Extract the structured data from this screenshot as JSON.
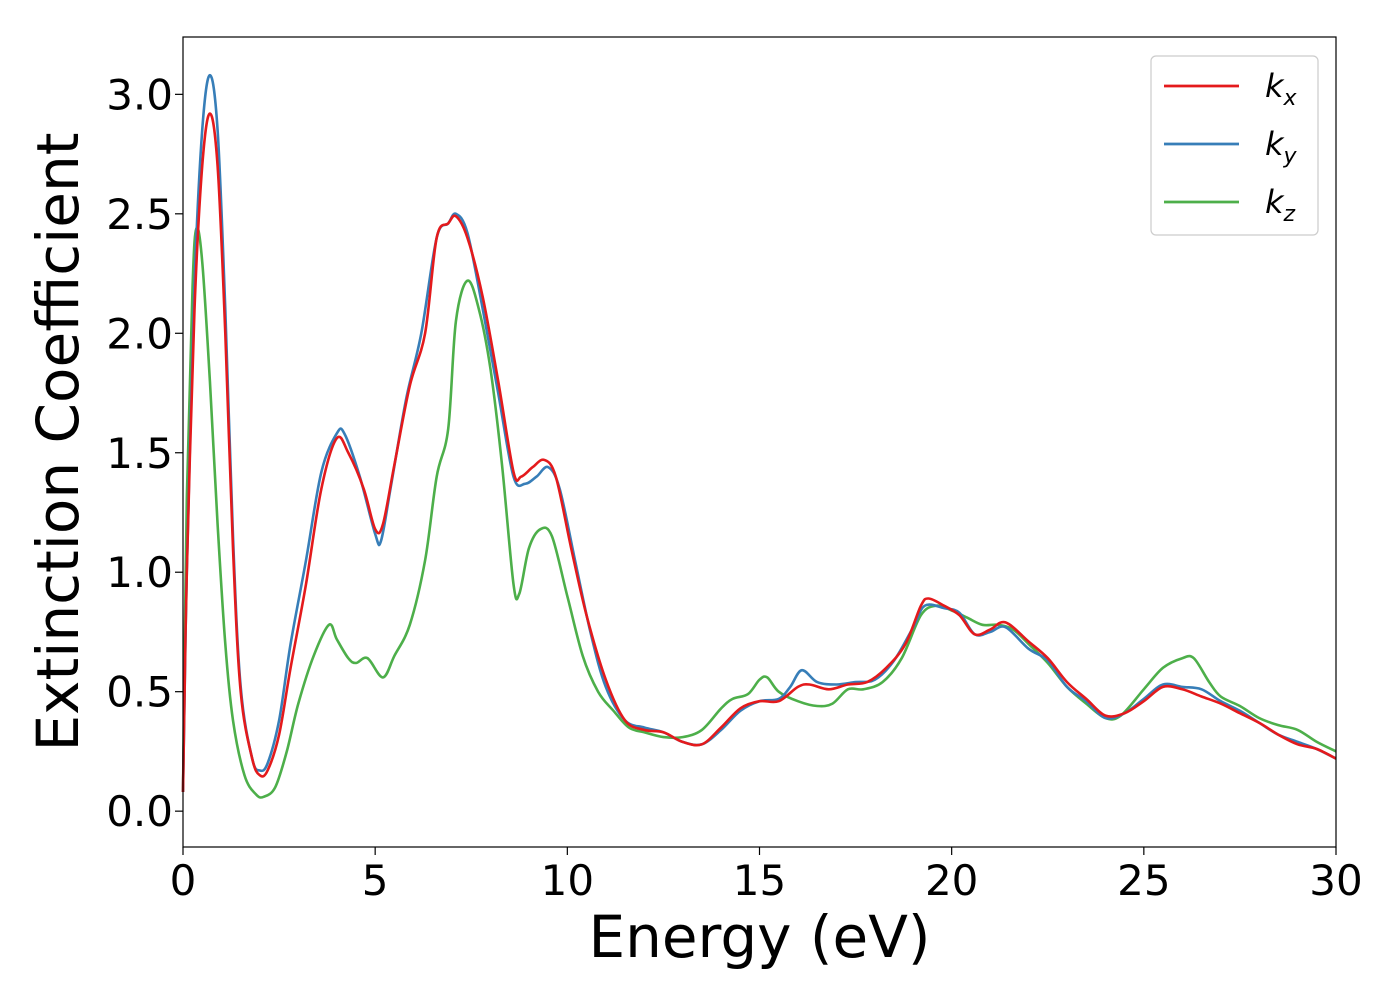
{
  "chart_data": {
    "type": "line",
    "xlabel": "Energy (eV)",
    "ylabel": "Extinction Coefficient",
    "xlim": [
      0,
      30
    ],
    "ylim": [
      -0.15,
      3.24
    ],
    "xticks": [
      0,
      5,
      10,
      15,
      20,
      25,
      30
    ],
    "xtick_labels": [
      "0",
      "5",
      "10",
      "15",
      "20",
      "25",
      "30"
    ],
    "yticks": [
      0.0,
      0.5,
      1.0,
      1.5,
      2.0,
      2.5,
      3.0
    ],
    "ytick_labels": [
      "0.0",
      "0.5",
      "1.0",
      "1.5",
      "2.0",
      "2.5",
      "3.0"
    ],
    "grid": false,
    "legend_position": "top-right",
    "series": [
      {
        "name": "k",
        "subscript": "x",
        "color": "#e41a1c",
        "points": [
          [
            0,
            0.08
          ],
          [
            0.1,
            1.0
          ],
          [
            0.3,
            2.1
          ],
          [
            0.5,
            2.7
          ],
          [
            0.7,
            2.92
          ],
          [
            0.9,
            2.7
          ],
          [
            1.1,
            2.0
          ],
          [
            1.3,
            1.1
          ],
          [
            1.5,
            0.5
          ],
          [
            1.8,
            0.22
          ],
          [
            2.0,
            0.15
          ],
          [
            2.2,
            0.17
          ],
          [
            2.5,
            0.32
          ],
          [
            2.8,
            0.6
          ],
          [
            3.2,
            0.95
          ],
          [
            3.6,
            1.35
          ],
          [
            4.0,
            1.56
          ],
          [
            4.3,
            1.5
          ],
          [
            4.7,
            1.35
          ],
          [
            5.0,
            1.18
          ],
          [
            5.2,
            1.2
          ],
          [
            5.5,
            1.45
          ],
          [
            5.9,
            1.78
          ],
          [
            6.3,
            2.0
          ],
          [
            6.6,
            2.4
          ],
          [
            6.9,
            2.46
          ],
          [
            7.1,
            2.49
          ],
          [
            7.4,
            2.4
          ],
          [
            7.8,
            2.15
          ],
          [
            8.2,
            1.8
          ],
          [
            8.6,
            1.42
          ],
          [
            8.8,
            1.4
          ],
          [
            9.1,
            1.44
          ],
          [
            9.4,
            1.47
          ],
          [
            9.7,
            1.4
          ],
          [
            10.1,
            1.1
          ],
          [
            10.5,
            0.82
          ],
          [
            11.0,
            0.55
          ],
          [
            11.5,
            0.38
          ],
          [
            12.0,
            0.34
          ],
          [
            12.5,
            0.33
          ],
          [
            13.0,
            0.29
          ],
          [
            13.5,
            0.28
          ],
          [
            14.0,
            0.35
          ],
          [
            14.5,
            0.43
          ],
          [
            15.0,
            0.46
          ],
          [
            15.5,
            0.46
          ],
          [
            16.0,
            0.52
          ],
          [
            16.3,
            0.53
          ],
          [
            16.8,
            0.51
          ],
          [
            17.3,
            0.53
          ],
          [
            17.8,
            0.54
          ],
          [
            18.3,
            0.6
          ],
          [
            18.8,
            0.7
          ],
          [
            19.2,
            0.86
          ],
          [
            19.4,
            0.89
          ],
          [
            19.8,
            0.86
          ],
          [
            20.2,
            0.82
          ],
          [
            20.6,
            0.74
          ],
          [
            21.0,
            0.76
          ],
          [
            21.4,
            0.79
          ],
          [
            22.0,
            0.71
          ],
          [
            22.5,
            0.64
          ],
          [
            23.0,
            0.54
          ],
          [
            23.5,
            0.47
          ],
          [
            24.0,
            0.4
          ],
          [
            24.5,
            0.41
          ],
          [
            25.0,
            0.46
          ],
          [
            25.5,
            0.52
          ],
          [
            26.0,
            0.51
          ],
          [
            26.5,
            0.48
          ],
          [
            27.0,
            0.45
          ],
          [
            27.5,
            0.41
          ],
          [
            28.0,
            0.37
          ],
          [
            28.5,
            0.32
          ],
          [
            29.0,
            0.28
          ],
          [
            29.5,
            0.26
          ],
          [
            30.0,
            0.22
          ]
        ]
      },
      {
        "name": "k",
        "subscript": "y",
        "color": "#377eb8",
        "points": [
          [
            0,
            0.08
          ],
          [
            0.1,
            1.0
          ],
          [
            0.3,
            2.2
          ],
          [
            0.5,
            2.85
          ],
          [
            0.7,
            3.08
          ],
          [
            0.9,
            2.85
          ],
          [
            1.1,
            2.1
          ],
          [
            1.3,
            1.15
          ],
          [
            1.5,
            0.52
          ],
          [
            1.8,
            0.22
          ],
          [
            2.0,
            0.17
          ],
          [
            2.2,
            0.2
          ],
          [
            2.5,
            0.38
          ],
          [
            2.8,
            0.7
          ],
          [
            3.2,
            1.05
          ],
          [
            3.6,
            1.42
          ],
          [
            4.0,
            1.58
          ],
          [
            4.2,
            1.58
          ],
          [
            4.6,
            1.4
          ],
          [
            5.0,
            1.16
          ],
          [
            5.15,
            1.13
          ],
          [
            5.4,
            1.35
          ],
          [
            5.8,
            1.72
          ],
          [
            6.2,
            2.0
          ],
          [
            6.6,
            2.4
          ],
          [
            6.9,
            2.46
          ],
          [
            7.1,
            2.5
          ],
          [
            7.4,
            2.42
          ],
          [
            7.8,
            2.1
          ],
          [
            8.2,
            1.75
          ],
          [
            8.6,
            1.4
          ],
          [
            8.9,
            1.37
          ],
          [
            9.2,
            1.4
          ],
          [
            9.5,
            1.44
          ],
          [
            9.8,
            1.35
          ],
          [
            10.2,
            1.05
          ],
          [
            10.6,
            0.75
          ],
          [
            11.0,
            0.52
          ],
          [
            11.5,
            0.38
          ],
          [
            12.0,
            0.35
          ],
          [
            12.5,
            0.33
          ],
          [
            13.0,
            0.29
          ],
          [
            13.5,
            0.28
          ],
          [
            14.0,
            0.34
          ],
          [
            14.5,
            0.42
          ],
          [
            15.0,
            0.46
          ],
          [
            15.5,
            0.47
          ],
          [
            15.8,
            0.52
          ],
          [
            16.1,
            0.59
          ],
          [
            16.5,
            0.54
          ],
          [
            17.0,
            0.53
          ],
          [
            17.5,
            0.54
          ],
          [
            18.0,
            0.55
          ],
          [
            18.5,
            0.63
          ],
          [
            19.0,
            0.77
          ],
          [
            19.3,
            0.86
          ],
          [
            19.8,
            0.85
          ],
          [
            20.2,
            0.83
          ],
          [
            20.6,
            0.74
          ],
          [
            21.0,
            0.75
          ],
          [
            21.4,
            0.77
          ],
          [
            22.0,
            0.68
          ],
          [
            22.5,
            0.63
          ],
          [
            23.0,
            0.52
          ],
          [
            23.5,
            0.46
          ],
          [
            24.0,
            0.39
          ],
          [
            24.5,
            0.41
          ],
          [
            25.0,
            0.47
          ],
          [
            25.5,
            0.53
          ],
          [
            26.0,
            0.52
          ],
          [
            26.5,
            0.51
          ],
          [
            27.0,
            0.46
          ],
          [
            27.5,
            0.42
          ],
          [
            28.0,
            0.37
          ],
          [
            28.5,
            0.32
          ],
          [
            29.0,
            0.29
          ],
          [
            29.5,
            0.26
          ],
          [
            30.0,
            0.22
          ]
        ]
      },
      {
        "name": "k",
        "subscript": "z",
        "color": "#4daf4a",
        "points": [
          [
            0,
            0.08
          ],
          [
            0.1,
            1.3
          ],
          [
            0.25,
            2.2
          ],
          [
            0.35,
            2.44
          ],
          [
            0.5,
            2.3
          ],
          [
            0.7,
            1.8
          ],
          [
            0.9,
            1.2
          ],
          [
            1.1,
            0.7
          ],
          [
            1.3,
            0.38
          ],
          [
            1.6,
            0.15
          ],
          [
            1.9,
            0.07
          ],
          [
            2.1,
            0.06
          ],
          [
            2.4,
            0.1
          ],
          [
            2.7,
            0.25
          ],
          [
            3.0,
            0.45
          ],
          [
            3.4,
            0.65
          ],
          [
            3.8,
            0.78
          ],
          [
            4.0,
            0.72
          ],
          [
            4.3,
            0.64
          ],
          [
            4.5,
            0.62
          ],
          [
            4.8,
            0.64
          ],
          [
            5.2,
            0.56
          ],
          [
            5.5,
            0.65
          ],
          [
            5.9,
            0.78
          ],
          [
            6.3,
            1.05
          ],
          [
            6.6,
            1.4
          ],
          [
            6.9,
            1.6
          ],
          [
            7.1,
            2.05
          ],
          [
            7.4,
            2.22
          ],
          [
            7.7,
            2.1
          ],
          [
            8.0,
            1.85
          ],
          [
            8.3,
            1.45
          ],
          [
            8.6,
            0.95
          ],
          [
            8.75,
            0.91
          ],
          [
            9.0,
            1.1
          ],
          [
            9.3,
            1.18
          ],
          [
            9.6,
            1.15
          ],
          [
            10.0,
            0.9
          ],
          [
            10.4,
            0.65
          ],
          [
            10.8,
            0.5
          ],
          [
            11.2,
            0.42
          ],
          [
            11.6,
            0.35
          ],
          [
            12.0,
            0.33
          ],
          [
            12.5,
            0.31
          ],
          [
            13.0,
            0.31
          ],
          [
            13.5,
            0.34
          ],
          [
            14.0,
            0.43
          ],
          [
            14.3,
            0.47
          ],
          [
            14.7,
            0.49
          ],
          [
            15.0,
            0.55
          ],
          [
            15.2,
            0.56
          ],
          [
            15.5,
            0.5
          ],
          [
            16.0,
            0.46
          ],
          [
            16.5,
            0.44
          ],
          [
            16.9,
            0.45
          ],
          [
            17.3,
            0.51
          ],
          [
            17.7,
            0.51
          ],
          [
            18.2,
            0.54
          ],
          [
            18.7,
            0.64
          ],
          [
            19.2,
            0.82
          ],
          [
            19.6,
            0.86
          ],
          [
            20.0,
            0.84
          ],
          [
            20.4,
            0.81
          ],
          [
            20.8,
            0.78
          ],
          [
            21.2,
            0.78
          ],
          [
            21.6,
            0.76
          ],
          [
            22.0,
            0.7
          ],
          [
            22.5,
            0.62
          ],
          [
            23.0,
            0.52
          ],
          [
            23.5,
            0.45
          ],
          [
            24.0,
            0.39
          ],
          [
            24.4,
            0.4
          ],
          [
            25.0,
            0.51
          ],
          [
            25.5,
            0.6
          ],
          [
            26.0,
            0.64
          ],
          [
            26.3,
            0.64
          ],
          [
            26.7,
            0.54
          ],
          [
            27.0,
            0.48
          ],
          [
            27.5,
            0.44
          ],
          [
            28.0,
            0.39
          ],
          [
            28.5,
            0.36
          ],
          [
            29.0,
            0.34
          ],
          [
            29.5,
            0.29
          ],
          [
            30.0,
            0.25
          ]
        ]
      }
    ]
  }
}
